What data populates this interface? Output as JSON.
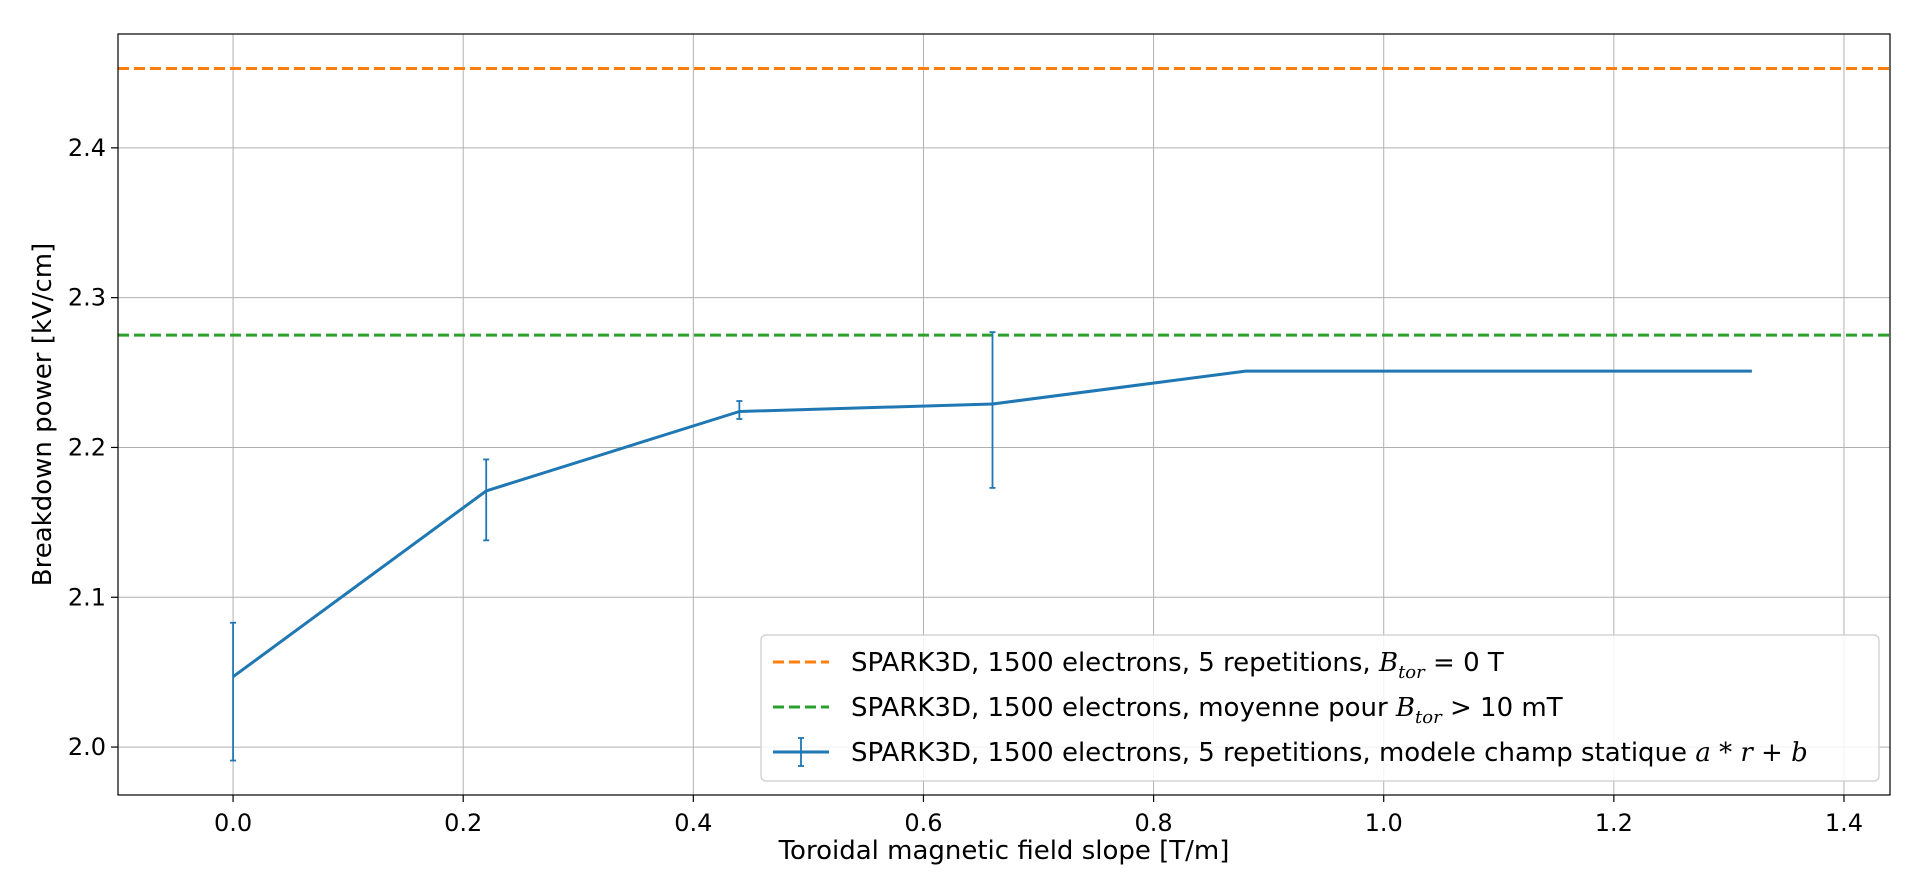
{
  "chart_data": {
    "type": "line",
    "title": "",
    "xlabel": "Toroidal magnetic field slope [T/m]",
    "ylabel": "Breakdown power [kV/cm]",
    "xlim": [
      -0.1,
      1.44
    ],
    "ylim": [
      1.968,
      2.476
    ],
    "xticks": [
      0.0,
      0.2,
      0.4,
      0.6,
      0.8,
      1.0,
      1.2,
      1.4
    ],
    "xtick_labels": [
      "0.0",
      "0.2",
      "0.4",
      "0.6",
      "0.8",
      "1.0",
      "1.2",
      "1.4"
    ],
    "yticks": [
      2.0,
      2.1,
      2.2,
      2.3,
      2.4
    ],
    "ytick_labels": [
      "2.0",
      "2.1",
      "2.2",
      "2.3",
      "2.4"
    ],
    "grid": true,
    "legend_position": "lower-right",
    "hlines": [
      {
        "y": 2.453,
        "color": "#ff7f0e",
        "style": "dashed",
        "legend": {
          "prefix": "SPARK3D, 1500 electrons, 5 repetitions, ",
          "var": "B",
          "sub": "tor",
          "suffix": " = 0 T"
        }
      },
      {
        "y": 2.275,
        "color": "#2ca02c",
        "style": "dashed",
        "legend": {
          "prefix": "SPARK3D, 1500 electrons, moyenne pour ",
          "var": "B",
          "sub": "tor",
          "suffix": " > 10 mT"
        }
      }
    ],
    "series": [
      {
        "color": "#1f77b4",
        "x": [
          0.0,
          0.22,
          0.44,
          0.66,
          0.88,
          1.1,
          1.32
        ],
        "y": [
          2.047,
          2.171,
          2.224,
          2.229,
          2.251,
          2.251,
          2.251
        ],
        "yerr_low": [
          1.991,
          2.138,
          2.219,
          2.173,
          2.251,
          2.251,
          2.251
        ],
        "yerr_high": [
          2.083,
          2.192,
          2.231,
          2.277,
          2.251,
          2.251,
          2.251
        ],
        "legend": {
          "prefix": "SPARK3D, 1500 electrons, 5 repetitions, modele champ statique ",
          "math": "a * r + b"
        }
      }
    ]
  }
}
